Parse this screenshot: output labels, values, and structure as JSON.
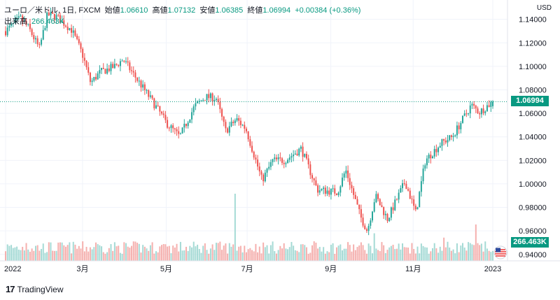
{
  "header": {
    "symbol": "ユーロ／米ドル, 1日, FXCM",
    "open_label": "始値",
    "open": "1.06610",
    "high_label": "高値",
    "high": "1.07132",
    "low_label": "安値",
    "low": "1.06385",
    "close_label": "終値",
    "close": "1.06994",
    "change": "+0.00384 (+0.36%)"
  },
  "volume": {
    "label": "出来高",
    "value": "266.463K"
  },
  "currency": "USD",
  "price_tag": "1.06994",
  "volume_tag": "266.463K",
  "brand": {
    "logo": "17",
    "name": "TradingView"
  },
  "colors": {
    "up": "#26a69a",
    "down": "#ef5350",
    "vol_up": "#a5dad5",
    "vol_down": "#f5b0ae",
    "tag": "#089981",
    "grid": "#f0f3fa"
  },
  "chart_data": {
    "type": "candlestick",
    "x_tick_labels": [
      "2022",
      "3月",
      "5月",
      "7月",
      "9月",
      "11月",
      "2023"
    ],
    "y_tick_labels": [
      "1.14000",
      "1.12000",
      "1.10000",
      "1.08000",
      "1.06000",
      "1.04000",
      "1.02000",
      "1.00000",
      "0.98000",
      "0.96000",
      "0.94000"
    ],
    "ylim": [
      0.9345,
      1.1535
    ],
    "close_points": [
      [
        "2022-01-03",
        1.13
      ],
      [
        "2022-01-14",
        1.141
      ],
      [
        "2022-01-20",
        1.133
      ],
      [
        "2022-01-28",
        1.115
      ],
      [
        "2022-02-03",
        1.144
      ],
      [
        "2022-02-10",
        1.142
      ],
      [
        "2022-02-21",
        1.131
      ],
      [
        "2022-03-01",
        1.11
      ],
      [
        "2022-03-07",
        1.086
      ],
      [
        "2022-03-14",
        1.095
      ],
      [
        "2022-03-25",
        1.1
      ],
      [
        "2022-03-31",
        1.106
      ],
      [
        "2022-04-14",
        1.083
      ],
      [
        "2022-04-26",
        1.063
      ],
      [
        "2022-05-02",
        1.052
      ],
      [
        "2022-05-12",
        1.04
      ],
      [
        "2022-05-23",
        1.066
      ],
      [
        "2022-05-31",
        1.074
      ],
      [
        "2022-06-08",
        1.073
      ],
      [
        "2022-06-15",
        1.045
      ],
      [
        "2022-06-23",
        1.055
      ],
      [
        "2022-06-30",
        1.047
      ],
      [
        "2022-07-12",
        1.003
      ],
      [
        "2022-07-20",
        1.02
      ],
      [
        "2022-07-29",
        1.02
      ],
      [
        "2022-08-10",
        1.03
      ],
      [
        "2022-08-22",
        0.995
      ],
      [
        "2022-09-06",
        0.993
      ],
      [
        "2022-09-12",
        1.012
      ],
      [
        "2022-09-23",
        0.972
      ],
      [
        "2022-09-28",
        0.96
      ],
      [
        "2022-10-04",
        0.99
      ],
      [
        "2022-10-13",
        0.97
      ],
      [
        "2022-10-26",
        1.002
      ],
      [
        "2022-11-03",
        0.975
      ],
      [
        "2022-11-10",
        1.02
      ],
      [
        "2022-11-22",
        1.035
      ],
      [
        "2022-11-30",
        1.04
      ],
      [
        "2022-12-14",
        1.067
      ],
      [
        "2022-12-20",
        1.061
      ],
      [
        "2022-12-30",
        1.07
      ]
    ],
    "last": {
      "open": 1.0661,
      "high": 1.07132,
      "low": 1.06385,
      "close": 1.06994
    }
  }
}
